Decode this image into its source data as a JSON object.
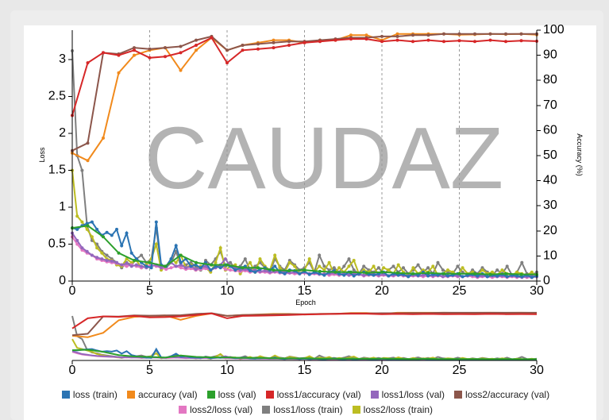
{
  "watermark": "CAUDAZ",
  "chart_data": {
    "type": "line",
    "x_label": "Epoch",
    "y_left_label": "Loss",
    "y_right_label": "Accuracy (%)",
    "x_range": [
      0,
      30
    ],
    "y_left_range": [
      0,
      3.4
    ],
    "y_right_range": [
      0,
      100
    ],
    "x_ticks": [
      "0",
      "5",
      "10",
      "15",
      "20",
      "25",
      "30"
    ],
    "y_left_ticks": [
      "0",
      "0.5",
      "1",
      "1.5",
      "2",
      "2.5",
      "3"
    ],
    "y_right_ticks": [
      "0",
      "10",
      "20",
      "30",
      "40",
      "50",
      "60",
      "70",
      "80",
      "90",
      "100"
    ],
    "vertical_grid_at": [
      5,
      10,
      15,
      20,
      25,
      30
    ],
    "series": [
      {
        "name": "loss (train)",
        "color": "#2b74b3",
        "axis": "left",
        "kind": "dense",
        "v": [
          0.72,
          0.7,
          0.75,
          0.78,
          0.8,
          0.7,
          0.62,
          0.66,
          0.62,
          0.7,
          0.48,
          0.65,
          0.38,
          0.3,
          0.25,
          0.2,
          0.18,
          0.8,
          0.22,
          0.2,
          0.3,
          0.48,
          0.25,
          0.3,
          0.2,
          0.22,
          0.18,
          0.25,
          0.15,
          0.2,
          0.18,
          0.22,
          0.2,
          0.15,
          0.18,
          0.2,
          0.14,
          0.12,
          0.16,
          0.18,
          0.15,
          0.2,
          0.12,
          0.1,
          0.15,
          0.14,
          0.1,
          0.13,
          0.09,
          0.12,
          0.1,
          0.08,
          0.12,
          0.14,
          0.1,
          0.08,
          0.12,
          0.07,
          0.1,
          0.12,
          0.09,
          0.08,
          0.1,
          0.12,
          0.07,
          0.1,
          0.08,
          0.09,
          0.06,
          0.1,
          0.08,
          0.12,
          0.07,
          0.09,
          0.08,
          0.1,
          0.07,
          0.08,
          0.1,
          0.06,
          0.08,
          0.09,
          0.07,
          0.1,
          0.06,
          0.08,
          0.07,
          0.09,
          0.06,
          0.08,
          0.07,
          0.06,
          0.08,
          0.05,
          0.07
        ]
      },
      {
        "name": "accuracy (val)",
        "color": "#f18a1c",
        "axis": "right",
        "kind": "epoch",
        "x": [
          0,
          1,
          2,
          3,
          4,
          5,
          6,
          7,
          8,
          9,
          10,
          11,
          12,
          13,
          14,
          15,
          16,
          17,
          18,
          19,
          20,
          21,
          22,
          23,
          24,
          25,
          26,
          27,
          28,
          29,
          30
        ],
        "v": [
          51,
          48,
          57,
          83,
          90,
          92,
          93,
          84,
          92,
          97,
          92,
          94,
          95,
          96,
          96,
          95,
          96,
          96,
          98,
          98,
          96,
          98.5,
          98.5,
          98.5,
          98.5,
          98.2,
          98.3,
          98.5,
          98.4,
          98.5,
          98.2
        ]
      },
      {
        "name": "loss (val)",
        "color": "#2ca02c",
        "axis": "left",
        "kind": "epoch",
        "x": [
          0,
          1,
          2,
          3,
          4,
          5,
          6,
          7,
          8,
          9,
          10,
          11,
          12,
          13,
          14,
          15,
          16,
          17,
          18,
          19,
          20,
          21,
          22,
          23,
          24,
          25,
          26,
          27,
          28,
          29,
          30
        ],
        "v": [
          0.72,
          0.75,
          0.6,
          0.38,
          0.28,
          0.25,
          0.2,
          0.35,
          0.25,
          0.22,
          0.22,
          0.18,
          0.18,
          0.15,
          0.14,
          0.15,
          0.13,
          0.12,
          0.12,
          0.11,
          0.12,
          0.11,
          0.1,
          0.11,
          0.1,
          0.1,
          0.1,
          0.09,
          0.1,
          0.09,
          0.09
        ]
      },
      {
        "name": "loss1/accuracy (val)",
        "color": "#d62728",
        "axis": "right",
        "kind": "epoch",
        "x": [
          0,
          1,
          2,
          3,
          4,
          5,
          6,
          7,
          8,
          9,
          10,
          11,
          12,
          13,
          14,
          15,
          16,
          17,
          18,
          19,
          20,
          21,
          22,
          23,
          24,
          25,
          26,
          27,
          28,
          29,
          30
        ],
        "v": [
          66,
          87,
          91,
          90,
          92,
          89,
          89.5,
          91,
          94,
          97,
          87,
          92,
          92.5,
          93,
          94,
          95,
          95.5,
          96,
          96.5,
          96.5,
          95.5,
          96,
          95.5,
          96,
          95.5,
          95.8,
          95.5,
          96,
          95.5,
          95.8,
          95.6
        ]
      },
      {
        "name": "loss1/loss (val)",
        "color": "#9467bd",
        "axis": "left",
        "kind": "dense",
        "v": [
          0.65,
          0.55,
          0.45,
          0.4,
          0.35,
          0.32,
          0.3,
          0.28,
          0.27,
          0.25,
          0.22,
          0.24,
          0.2,
          0.22,
          0.2,
          0.18,
          0.2,
          0.22,
          0.18,
          0.2,
          0.25,
          0.2,
          0.22,
          0.18,
          0.2,
          0.16,
          0.18,
          0.2,
          0.15,
          0.18,
          0.22,
          0.3,
          0.2,
          0.18,
          0.15,
          0.16,
          0.14,
          0.15,
          0.13,
          0.14,
          0.12,
          0.13,
          0.14,
          0.12,
          0.11,
          0.12,
          0.1,
          0.12,
          0.1,
          0.11,
          0.1,
          0.09,
          0.1,
          0.11,
          0.09,
          0.1,
          0.08,
          0.1,
          0.09,
          0.08,
          0.09,
          0.1,
          0.08,
          0.09,
          0.07,
          0.08,
          0.09,
          0.08,
          0.07,
          0.08,
          0.07,
          0.08,
          0.09,
          0.07,
          0.08,
          0.06,
          0.07,
          0.08,
          0.07,
          0.06,
          0.07,
          0.08,
          0.06,
          0.07,
          0.06,
          0.07,
          0.06,
          0.07,
          0.06,
          0.07,
          0.06,
          0.05,
          0.06,
          0.07,
          0.06
        ]
      },
      {
        "name": "loss2/accuracy (val)",
        "color": "#8c564b",
        "axis": "right",
        "kind": "epoch",
        "x": [
          0,
          1,
          2,
          3,
          4,
          5,
          6,
          7,
          8,
          9,
          10,
          11,
          12,
          13,
          14,
          15,
          16,
          17,
          18,
          19,
          20,
          21,
          22,
          23,
          24,
          25,
          26,
          27,
          28,
          29,
          30
        ],
        "v": [
          52,
          55,
          91,
          90.5,
          93,
          92.5,
          93,
          93.5,
          96,
          97.5,
          92,
          94,
          94.5,
          95,
          95.5,
          95.5,
          96,
          96.5,
          97,
          97,
          97.5,
          97.5,
          98,
          98,
          98.5,
          98.5,
          98.5,
          98.5,
          98.5,
          98.5,
          98.5
        ]
      },
      {
        "name": "loss2/loss (val)",
        "color": "#e377c2",
        "axis": "left",
        "kind": "dense",
        "v": [
          0.6,
          0.5,
          0.42,
          0.38,
          0.35,
          0.3,
          0.28,
          0.26,
          0.25,
          0.24,
          0.22,
          0.2,
          0.22,
          0.2,
          0.18,
          0.2,
          0.22,
          0.2,
          0.18,
          0.16,
          0.18,
          0.2,
          0.18,
          0.16,
          0.17,
          0.15,
          0.16,
          0.17,
          0.15,
          0.18,
          0.2,
          0.16,
          0.15,
          0.14,
          0.13,
          0.14,
          0.12,
          0.13,
          0.12,
          0.12,
          0.11,
          0.12,
          0.11,
          0.1,
          0.11,
          0.1,
          0.1,
          0.11,
          0.09,
          0.1,
          0.09,
          0.1,
          0.08,
          0.09,
          0.08,
          0.09,
          0.08,
          0.08,
          0.09,
          0.07,
          0.08,
          0.08,
          0.07,
          0.08,
          0.07,
          0.07,
          0.08,
          0.07,
          0.06,
          0.07,
          0.07,
          0.06,
          0.07,
          0.06,
          0.07,
          0.06,
          0.06,
          0.07,
          0.06,
          0.06,
          0.07,
          0.06,
          0.05,
          0.06,
          0.06,
          0.05,
          0.06,
          0.06,
          0.05,
          0.06,
          0.05,
          0.06,
          0.05,
          0.05,
          0.06
        ]
      },
      {
        "name": "loss1/loss (train)",
        "color": "#7f7f7f",
        "axis": "left",
        "kind": "dense",
        "v": [
          3.12,
          1.7,
          1.5,
          0.75,
          0.55,
          0.5,
          0.4,
          0.35,
          0.3,
          0.25,
          0.18,
          0.25,
          0.22,
          0.3,
          0.35,
          0.25,
          0.3,
          0.72,
          0.2,
          0.18,
          0.25,
          0.4,
          0.2,
          0.22,
          0.25,
          0.2,
          0.15,
          0.28,
          0.22,
          0.3,
          0.4,
          0.2,
          0.25,
          0.18,
          0.2,
          0.3,
          0.15,
          0.2,
          0.25,
          0.18,
          0.12,
          0.3,
          0.2,
          0.15,
          0.28,
          0.22,
          0.15,
          0.18,
          0.25,
          0.12,
          0.35,
          0.2,
          0.15,
          0.18,
          0.12,
          0.2,
          0.3,
          0.15,
          0.1,
          0.2,
          0.15,
          0.12,
          0.18,
          0.1,
          0.15,
          0.2,
          0.12,
          0.18,
          0.1,
          0.15,
          0.22,
          0.12,
          0.18,
          0.1,
          0.25,
          0.15,
          0.12,
          0.1,
          0.2,
          0.12,
          0.08,
          0.15,
          0.1,
          0.18,
          0.12,
          0.08,
          0.15,
          0.1,
          0.2,
          0.08,
          0.12,
          0.25,
          0.1,
          0.08,
          0.12
        ]
      },
      {
        "name": "loss2/loss (train)",
        "color": "#bcbd22",
        "axis": "left",
        "kind": "dense",
        "v": [
          1.5,
          0.88,
          0.8,
          0.7,
          0.6,
          0.45,
          0.38,
          0.3,
          0.28,
          0.22,
          0.2,
          0.3,
          0.25,
          0.28,
          0.18,
          0.22,
          0.3,
          0.5,
          0.15,
          0.2,
          0.3,
          0.25,
          0.35,
          0.18,
          0.22,
          0.15,
          0.2,
          0.18,
          0.12,
          0.25,
          0.45,
          0.15,
          0.2,
          0.22,
          0.1,
          0.18,
          0.25,
          0.12,
          0.3,
          0.2,
          0.15,
          0.35,
          0.18,
          0.12,
          0.25,
          0.2,
          0.1,
          0.15,
          0.3,
          0.12,
          0.2,
          0.15,
          0.25,
          0.1,
          0.18,
          0.12,
          0.2,
          0.28,
          0.1,
          0.15,
          0.12,
          0.2,
          0.08,
          0.18,
          0.15,
          0.1,
          0.22,
          0.12,
          0.08,
          0.18,
          0.1,
          0.15,
          0.12,
          0.2,
          0.08,
          0.1,
          0.15,
          0.12,
          0.08,
          0.18,
          0.1,
          0.12,
          0.08,
          0.15,
          0.1,
          0.12,
          0.08,
          0.15,
          0.1,
          0.08,
          0.12,
          0.1,
          0.08,
          0.12,
          0.06
        ]
      }
    ],
    "legend_placement": "bottom"
  }
}
